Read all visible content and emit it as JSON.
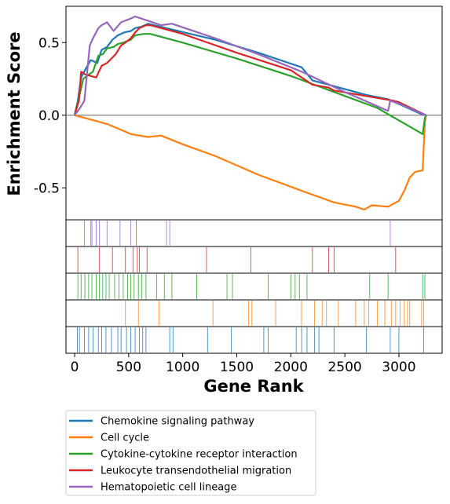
{
  "chart_data": {
    "type": "line",
    "xlabel": "Gene Rank",
    "ylabel": "Enrichment Score",
    "xlim": [
      -80,
      3400
    ],
    "ylim": [
      -0.72,
      0.75
    ],
    "xticks": [
      0,
      500,
      1000,
      1500,
      2000,
      2500,
      3000
    ],
    "yticks": [
      0.5,
      0.0,
      -0.5
    ],
    "ytick_labels": [
      "0.5",
      "0.0",
      "-0.5"
    ],
    "zero_line": true,
    "grid": false,
    "legend_placement": "below",
    "series": [
      {
        "name": "Chemokine signaling pathway",
        "color": "#1f77b4",
        "es": [
          [
            0,
            0
          ],
          [
            30,
            0.1
          ],
          [
            60,
            0.26
          ],
          [
            110,
            0.33
          ],
          [
            150,
            0.38
          ],
          [
            210,
            0.36
          ],
          [
            250,
            0.45
          ],
          [
            300,
            0.47
          ],
          [
            350,
            0.52
          ],
          [
            400,
            0.55
          ],
          [
            460,
            0.57
          ],
          [
            520,
            0.58
          ],
          [
            560,
            0.6
          ],
          [
            620,
            0.61
          ],
          [
            680,
            0.63
          ],
          [
            900,
            0.59
          ],
          [
            1300,
            0.52
          ],
          [
            1700,
            0.43
          ],
          [
            2100,
            0.33
          ],
          [
            2200,
            0.24
          ],
          [
            2300,
            0.22
          ],
          [
            2700,
            0.14
          ],
          [
            2900,
            0.11
          ],
          [
            3200,
            0.01
          ],
          [
            3250,
            0
          ]
        ],
        "hits": [
          25,
          45,
          90,
          130,
          170,
          220,
          250,
          290,
          340,
          400,
          430,
          480,
          520,
          560,
          600,
          630,
          660,
          880,
          910,
          1230,
          1450,
          1750,
          1790,
          2050,
          2100,
          2150,
          2220,
          2260,
          2400,
          2700,
          2920,
          3000,
          3230
        ]
      },
      {
        "name": "Cell cycle",
        "color": "#ff7f0e",
        "es": [
          [
            0,
            0
          ],
          [
            300,
            -0.06
          ],
          [
            460,
            -0.11
          ],
          [
            520,
            -0.13
          ],
          [
            600,
            -0.14
          ],
          [
            680,
            -0.15
          ],
          [
            800,
            -0.14
          ],
          [
            1000,
            -0.2
          ],
          [
            1300,
            -0.28
          ],
          [
            1700,
            -0.41
          ],
          [
            2100,
            -0.52
          ],
          [
            2400,
            -0.6
          ],
          [
            2600,
            -0.63
          ],
          [
            2680,
            -0.65
          ],
          [
            2750,
            -0.62
          ],
          [
            2900,
            -0.63
          ],
          [
            3000,
            -0.59
          ],
          [
            3050,
            -0.52
          ],
          [
            3100,
            -0.43
          ],
          [
            3150,
            -0.39
          ],
          [
            3220,
            -0.38
          ],
          [
            3240,
            -0.05
          ],
          [
            3250,
            0
          ]
        ],
        "hits": [
          470,
          590,
          780,
          1280,
          1610,
          1640,
          1860,
          2100,
          2220,
          2290,
          2330,
          2440,
          2600,
          2680,
          2720,
          2800,
          2870,
          2930,
          2970,
          3010,
          3050,
          3080,
          3100,
          3210,
          3230
        ]
      },
      {
        "name": "Cytokine-cytokine receptor interaction",
        "color": "#2ca02c",
        "es": [
          [
            0,
            0
          ],
          [
            40,
            0.12
          ],
          [
            80,
            0.25
          ],
          [
            130,
            0.28
          ],
          [
            170,
            0.3
          ],
          [
            220,
            0.41
          ],
          [
            260,
            0.42
          ],
          [
            300,
            0.46
          ],
          [
            360,
            0.47
          ],
          [
            400,
            0.49
          ],
          [
            450,
            0.5
          ],
          [
            520,
            0.52
          ],
          [
            560,
            0.55
          ],
          [
            640,
            0.56
          ],
          [
            700,
            0.56
          ],
          [
            1000,
            0.5
          ],
          [
            1500,
            0.39
          ],
          [
            2000,
            0.27
          ],
          [
            2400,
            0.16
          ],
          [
            2800,
            0.05
          ],
          [
            3220,
            -0.13
          ],
          [
            3240,
            -0.02
          ],
          [
            3250,
            0
          ]
        ],
        "hits": [
          30,
          60,
          95,
          130,
          160,
          200,
          230,
          260,
          290,
          320,
          370,
          410,
          450,
          490,
          520,
          550,
          590,
          620,
          660,
          760,
          830,
          900,
          1130,
          1410,
          1460,
          1790,
          2000,
          2040,
          2080,
          2150,
          2730,
          2900,
          3220,
          3240
        ]
      },
      {
        "name": "Leukocyte transendothelial migration",
        "color": "#d62728",
        "es": [
          [
            0,
            0
          ],
          [
            40,
            0.1
          ],
          [
            60,
            0.3
          ],
          [
            100,
            0.28
          ],
          [
            200,
            0.26
          ],
          [
            250,
            0.34
          ],
          [
            300,
            0.36
          ],
          [
            380,
            0.42
          ],
          [
            430,
            0.48
          ],
          [
            470,
            0.5
          ],
          [
            520,
            0.53
          ],
          [
            560,
            0.57
          ],
          [
            600,
            0.6
          ],
          [
            660,
            0.62
          ],
          [
            700,
            0.62
          ],
          [
            1000,
            0.56
          ],
          [
            1500,
            0.43
          ],
          [
            2000,
            0.31
          ],
          [
            2200,
            0.21
          ],
          [
            2350,
            0.19
          ],
          [
            2400,
            0.17
          ],
          [
            2950,
            0.1
          ],
          [
            3000,
            0.09
          ],
          [
            3250,
            0
          ]
        ],
        "hits": [
          30,
          230,
          350,
          470,
          540,
          580,
          600,
          670,
          1220,
          1630,
          2200,
          2350,
          2400,
          2970
        ]
      },
      {
        "name": "Hematopoietic cell lineage",
        "color": "#9467bd",
        "es": [
          [
            0,
            0
          ],
          [
            50,
            0.05
          ],
          [
            90,
            0.1
          ],
          [
            140,
            0.48
          ],
          [
            170,
            0.53
          ],
          [
            220,
            0.6
          ],
          [
            250,
            0.62
          ],
          [
            300,
            0.64
          ],
          [
            360,
            0.58
          ],
          [
            430,
            0.64
          ],
          [
            500,
            0.66
          ],
          [
            560,
            0.68
          ],
          [
            600,
            0.67
          ],
          [
            800,
            0.62
          ],
          [
            900,
            0.63
          ],
          [
            1300,
            0.53
          ],
          [
            1700,
            0.42
          ],
          [
            2100,
            0.3
          ],
          [
            2500,
            0.16
          ],
          [
            2900,
            0.03
          ],
          [
            2920,
            0.1
          ],
          [
            3000,
            0.08
          ],
          [
            3250,
            0
          ]
        ],
        "hits": [
          90,
          150,
          160,
          200,
          230,
          300,
          420,
          520,
          570,
          850,
          880,
          2920
        ]
      }
    ]
  }
}
